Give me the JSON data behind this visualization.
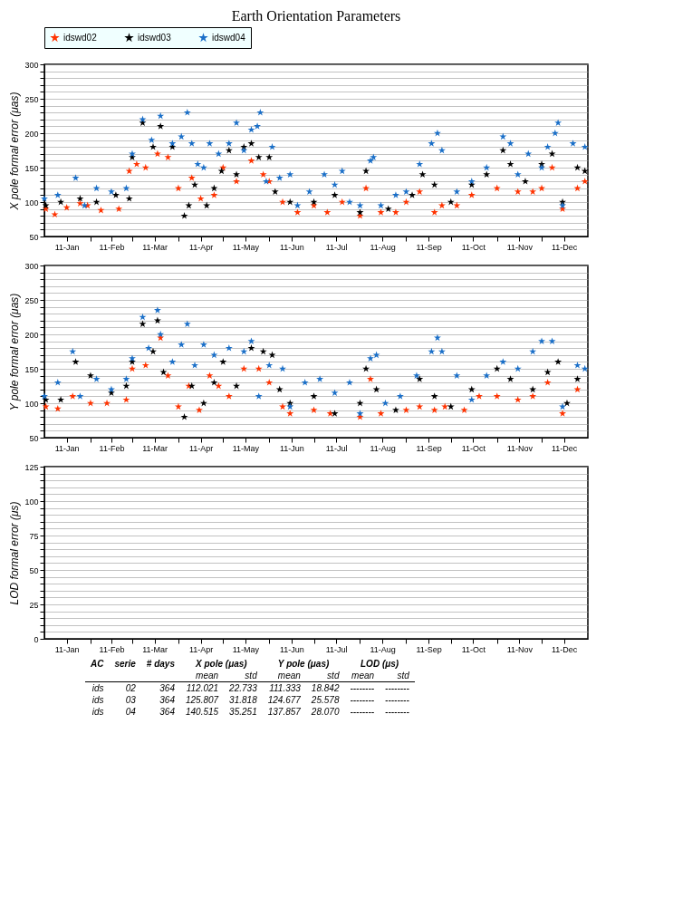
{
  "chart_data": [
    {
      "type": "scatter",
      "title": "Earth Orientation Parameters",
      "ylabel": "X pole formal error (μas)",
      "marker": "star",
      "grid": "y",
      "legend": "top",
      "xlim": [
        "2011-01-01",
        "2012-01-01"
      ],
      "xticks": [
        {
          "value": "2011-01-16",
          "label": "11-Jan"
        },
        {
          "value": "2011-02-01",
          "label": null
        },
        {
          "value": "2011-02-15",
          "label": "11-Feb"
        },
        {
          "value": "2011-03-01",
          "label": null
        },
        {
          "value": "2011-03-16",
          "label": "11-Mar"
        },
        {
          "value": "2011-04-01",
          "label": null
        },
        {
          "value": "2011-04-16",
          "label": "11-Apr"
        },
        {
          "value": "2011-05-01",
          "label": null
        },
        {
          "value": "2011-05-16",
          "label": "11-May"
        },
        {
          "value": "2011-06-01",
          "label": null
        },
        {
          "value": "2011-06-16",
          "label": "11-Jun"
        },
        {
          "value": "2011-07-01",
          "label": null
        },
        {
          "value": "2011-07-16",
          "label": "11-Jul"
        },
        {
          "value": "2011-08-01",
          "label": null
        },
        {
          "value": "2011-08-16",
          "label": "11-Aug"
        },
        {
          "value": "2011-09-01",
          "label": null
        },
        {
          "value": "2011-09-16",
          "label": "11-Sep"
        },
        {
          "value": "2011-10-01",
          "label": null
        },
        {
          "value": "2011-10-16",
          "label": "11-Oct"
        },
        {
          "value": "2011-11-01",
          "label": null
        },
        {
          "value": "2011-11-16",
          "label": "11-Nov"
        },
        {
          "value": "2011-12-01",
          "label": null
        },
        {
          "value": "2011-12-16",
          "label": "11-Dec"
        }
      ],
      "ylim": [
        50,
        300
      ],
      "yticks": [
        50,
        {
          "value": 60,
          "label": null
        },
        {
          "value": 70,
          "label": null
        },
        {
          "value": 80,
          "label": null
        },
        {
          "value": 90,
          "label": null
        },
        100,
        {
          "value": 110,
          "label": null
        },
        {
          "value": 120,
          "label": null
        },
        {
          "value": 130,
          "label": null
        },
        {
          "value": 140,
          "label": null
        },
        150,
        {
          "value": 160,
          "label": null
        },
        {
          "value": 170,
          "label": null
        },
        {
          "value": 180,
          "label": null
        },
        {
          "value": 190,
          "label": null
        },
        200,
        {
          "value": 210,
          "label": null
        },
        {
          "value": 220,
          "label": null
        },
        {
          "value": 230,
          "label": null
        },
        {
          "value": 240,
          "label": null
        },
        250,
        {
          "value": 260,
          "label": null
        },
        {
          "value": 270,
          "label": null
        },
        {
          "value": 280,
          "label": null
        },
        {
          "value": 290,
          "label": null
        },
        300
      ],
      "series": [
        {
          "name": "idswd02",
          "color": "#ff3300",
          "x": [
            "2011-01-02",
            "2011-01-08",
            "2011-01-16",
            "2011-01-25",
            "2011-01-30",
            "2011-02-08",
            "2011-02-20",
            "2011-02-27",
            "2011-03-04",
            "2011-03-10",
            "2011-03-18",
            "2011-03-25",
            "2011-04-01",
            "2011-04-10",
            "2011-04-16",
            "2011-04-25",
            "2011-05-01",
            "2011-05-10",
            "2011-05-20",
            "2011-05-28",
            "2011-06-01",
            "2011-06-10",
            "2011-06-20",
            "2011-07-01",
            "2011-07-10",
            "2011-07-20",
            "2011-08-01",
            "2011-08-05",
            "2011-08-15",
            "2011-08-25",
            "2011-09-01",
            "2011-09-10",
            "2011-09-20",
            "2011-09-25",
            "2011-10-05",
            "2011-10-15",
            "2011-11-01",
            "2011-11-15",
            "2011-11-25",
            "2011-12-01",
            "2011-12-08",
            "2011-12-15",
            "2011-12-25",
            "2011-12-30"
          ],
          "values": [
            90,
            82,
            92,
            98,
            95,
            88,
            90,
            145,
            155,
            150,
            170,
            165,
            120,
            135,
            105,
            110,
            150,
            130,
            160,
            140,
            130,
            100,
            85,
            95,
            85,
            100,
            80,
            120,
            85,
            85,
            100,
            115,
            85,
            95,
            95,
            110,
            120,
            115,
            115,
            120,
            150,
            90,
            120,
            130
          ]
        },
        {
          "name": "idswd03",
          "color": "#000000",
          "x": [
            "2011-01-02",
            "2011-01-12",
            "2011-01-25",
            "2011-02-05",
            "2011-02-18",
            "2011-02-27",
            "2011-03-01",
            "2011-03-08",
            "2011-03-15",
            "2011-03-20",
            "2011-03-28",
            "2011-04-05",
            "2011-04-08",
            "2011-04-12",
            "2011-04-20",
            "2011-04-25",
            "2011-04-30",
            "2011-05-05",
            "2011-05-10",
            "2011-05-15",
            "2011-05-20",
            "2011-05-25",
            "2011-06-01",
            "2011-06-05",
            "2011-06-15",
            "2011-07-01",
            "2011-07-15",
            "2011-08-01",
            "2011-08-05",
            "2011-08-20",
            "2011-09-05",
            "2011-09-12",
            "2011-09-20",
            "2011-10-01",
            "2011-10-15",
            "2011-10-25",
            "2011-11-05",
            "2011-11-10",
            "2011-11-20",
            "2011-12-01",
            "2011-12-08",
            "2011-12-15",
            "2011-12-25",
            "2011-12-30"
          ],
          "values": [
            95,
            100,
            105,
            100,
            110,
            105,
            165,
            215,
            180,
            210,
            180,
            80,
            95,
            125,
            95,
            120,
            145,
            175,
            140,
            180,
            185,
            165,
            165,
            115,
            100,
            100,
            110,
            85,
            145,
            90,
            110,
            140,
            125,
            100,
            125,
            140,
            175,
            155,
            130,
            155,
            170,
            100,
            150,
            145
          ]
        },
        {
          "name": "idswd04",
          "color": "#1a6fc8",
          "x": [
            "2011-01-01",
            "2011-01-10",
            "2011-01-22",
            "2011-01-28",
            "2011-02-05",
            "2011-02-15",
            "2011-02-25",
            "2011-03-01",
            "2011-03-08",
            "2011-03-14",
            "2011-03-20",
            "2011-03-28",
            "2011-04-03",
            "2011-04-07",
            "2011-04-10",
            "2011-04-14",
            "2011-04-18",
            "2011-04-22",
            "2011-04-28",
            "2011-05-05",
            "2011-05-10",
            "2011-05-15",
            "2011-05-20",
            "2011-05-24",
            "2011-05-26",
            "2011-05-30",
            "2011-06-03",
            "2011-06-08",
            "2011-06-15",
            "2011-06-20",
            "2011-06-28",
            "2011-07-08",
            "2011-07-15",
            "2011-07-20",
            "2011-07-25",
            "2011-08-01",
            "2011-08-08",
            "2011-08-10",
            "2011-08-15",
            "2011-08-25",
            "2011-09-01",
            "2011-09-10",
            "2011-09-18",
            "2011-09-22",
            "2011-09-25",
            "2011-10-05",
            "2011-10-15",
            "2011-10-25",
            "2011-11-05",
            "2011-11-10",
            "2011-11-15",
            "2011-11-22",
            "2011-12-01",
            "2011-12-05",
            "2011-12-10",
            "2011-12-12",
            "2011-12-15",
            "2011-12-22",
            "2011-12-30"
          ],
          "values": [
            105,
            110,
            135,
            95,
            120,
            115,
            120,
            170,
            220,
            190,
            225,
            185,
            195,
            230,
            185,
            155,
            150,
            185,
            170,
            185,
            215,
            175,
            205,
            210,
            230,
            130,
            180,
            135,
            140,
            95,
            115,
            140,
            125,
            145,
            100,
            95,
            160,
            165,
            95,
            110,
            115,
            155,
            185,
            200,
            175,
            115,
            130,
            150,
            195,
            185,
            140,
            170,
            150,
            180,
            200,
            215,
            95,
            185,
            180
          ]
        }
      ]
    },
    {
      "type": "scatter",
      "ylabel": "Y pole formal error (μas)",
      "marker": "star",
      "grid": "y",
      "xlim": [
        "2011-01-01",
        "2012-01-01"
      ],
      "xticks": [
        {
          "value": "2011-01-16",
          "label": "11-Jan"
        },
        {
          "value": "2011-02-01",
          "label": null
        },
        {
          "value": "2011-02-15",
          "label": "11-Feb"
        },
        {
          "value": "2011-03-01",
          "label": null
        },
        {
          "value": "2011-03-16",
          "label": "11-Mar"
        },
        {
          "value": "2011-04-01",
          "label": null
        },
        {
          "value": "2011-04-16",
          "label": "11-Apr"
        },
        {
          "value": "2011-05-01",
          "label": null
        },
        {
          "value": "2011-05-16",
          "label": "11-May"
        },
        {
          "value": "2011-06-01",
          "label": null
        },
        {
          "value": "2011-06-16",
          "label": "11-Jun"
        },
        {
          "value": "2011-07-01",
          "label": null
        },
        {
          "value": "2011-07-16",
          "label": "11-Jul"
        },
        {
          "value": "2011-08-01",
          "label": null
        },
        {
          "value": "2011-08-16",
          "label": "11-Aug"
        },
        {
          "value": "2011-09-01",
          "label": null
        },
        {
          "value": "2011-09-16",
          "label": "11-Sep"
        },
        {
          "value": "2011-10-01",
          "label": null
        },
        {
          "value": "2011-10-16",
          "label": "11-Oct"
        },
        {
          "value": "2011-11-01",
          "label": null
        },
        {
          "value": "2011-11-16",
          "label": "11-Nov"
        },
        {
          "value": "2011-12-01",
          "label": null
        },
        {
          "value": "2011-12-16",
          "label": "11-Dec"
        }
      ],
      "ylim": [
        50,
        300
      ],
      "yticks": [
        50,
        {
          "value": 60,
          "label": null
        },
        {
          "value": 70,
          "label": null
        },
        {
          "value": 80,
          "label": null
        },
        {
          "value": 90,
          "label": null
        },
        100,
        {
          "value": 110,
          "label": null
        },
        {
          "value": 120,
          "label": null
        },
        {
          "value": 130,
          "label": null
        },
        {
          "value": 140,
          "label": null
        },
        150,
        {
          "value": 160,
          "label": null
        },
        {
          "value": 170,
          "label": null
        },
        {
          "value": 180,
          "label": null
        },
        {
          "value": 190,
          "label": null
        },
        200,
        {
          "value": 210,
          "label": null
        },
        {
          "value": 220,
          "label": null
        },
        {
          "value": 230,
          "label": null
        },
        {
          "value": 240,
          "label": null
        },
        250,
        {
          "value": 260,
          "label": null
        },
        {
          "value": 270,
          "label": null
        },
        {
          "value": 280,
          "label": null
        },
        {
          "value": 290,
          "label": null
        },
        300
      ],
      "series": [
        {
          "color": "#ff3300",
          "x": [
            "2011-01-02",
            "2011-01-10",
            "2011-01-20",
            "2011-02-01",
            "2011-02-12",
            "2011-02-25",
            "2011-03-01",
            "2011-03-10",
            "2011-03-20",
            "2011-03-25",
            "2011-04-01",
            "2011-04-08",
            "2011-04-15",
            "2011-04-22",
            "2011-04-28",
            "2011-05-05",
            "2011-05-15",
            "2011-05-25",
            "2011-06-01",
            "2011-06-10",
            "2011-06-15",
            "2011-07-01",
            "2011-07-12",
            "2011-08-01",
            "2011-08-08",
            "2011-08-15",
            "2011-09-01",
            "2011-09-10",
            "2011-09-20",
            "2011-09-27",
            "2011-10-10",
            "2011-10-20",
            "2011-11-01",
            "2011-11-15",
            "2011-11-25",
            "2011-12-05",
            "2011-12-15",
            "2011-12-25"
          ],
          "values": [
            95,
            92,
            110,
            100,
            100,
            105,
            150,
            155,
            195,
            140,
            95,
            125,
            90,
            140,
            125,
            110,
            150,
            150,
            130,
            95,
            85,
            90,
            85,
            80,
            135,
            85,
            90,
            95,
            90,
            95,
            90,
            110,
            110,
            105,
            110,
            130,
            85,
            120
          ]
        },
        {
          "color": "#000000",
          "x": [
            "2011-01-02",
            "2011-01-12",
            "2011-01-22",
            "2011-02-01",
            "2011-02-15",
            "2011-02-25",
            "2011-03-01",
            "2011-03-08",
            "2011-03-15",
            "2011-03-18",
            "2011-03-22",
            "2011-04-05",
            "2011-04-10",
            "2011-04-18",
            "2011-04-25",
            "2011-05-01",
            "2011-05-10",
            "2011-05-20",
            "2011-05-28",
            "2011-06-03",
            "2011-06-08",
            "2011-06-15",
            "2011-07-01",
            "2011-07-15",
            "2011-08-01",
            "2011-08-05",
            "2011-08-12",
            "2011-08-25",
            "2011-09-10",
            "2011-09-20",
            "2011-10-01",
            "2011-10-15",
            "2011-11-01",
            "2011-11-10",
            "2011-11-25",
            "2011-12-05",
            "2011-12-12",
            "2011-12-18",
            "2011-12-25"
          ],
          "values": [
            105,
            105,
            160,
            140,
            115,
            125,
            160,
            215,
            175,
            220,
            145,
            80,
            125,
            100,
            130,
            160,
            125,
            180,
            175,
            170,
            120,
            100,
            110,
            85,
            100,
            150,
            120,
            90,
            135,
            110,
            95,
            120,
            150,
            135,
            120,
            145,
            160,
            100,
            135
          ]
        },
        {
          "color": "#1a6fc8",
          "x": [
            "2011-01-01",
            "2011-01-10",
            "2011-01-20",
            "2011-01-25",
            "2011-02-05",
            "2011-02-15",
            "2011-02-25",
            "2011-03-01",
            "2011-03-08",
            "2011-03-12",
            "2011-03-18",
            "2011-03-20",
            "2011-03-28",
            "2011-04-03",
            "2011-04-07",
            "2011-04-12",
            "2011-04-18",
            "2011-04-25",
            "2011-05-05",
            "2011-05-15",
            "2011-05-20",
            "2011-05-25",
            "2011-06-01",
            "2011-06-10",
            "2011-06-15",
            "2011-06-25",
            "2011-07-05",
            "2011-07-15",
            "2011-07-25",
            "2011-08-01",
            "2011-08-08",
            "2011-08-12",
            "2011-08-18",
            "2011-08-28",
            "2011-09-08",
            "2011-09-18",
            "2011-09-22",
            "2011-09-25",
            "2011-10-05",
            "2011-10-15",
            "2011-10-25",
            "2011-11-05",
            "2011-11-15",
            "2011-11-25",
            "2011-12-01",
            "2011-12-08",
            "2011-12-15",
            "2011-12-25",
            "2011-12-30"
          ],
          "values": [
            110,
            130,
            175,
            110,
            135,
            120,
            135,
            165,
            225,
            180,
            235,
            200,
            160,
            185,
            215,
            155,
            185,
            170,
            180,
            175,
            190,
            110,
            155,
            150,
            95,
            130,
            135,
            115,
            130,
            85,
            165,
            170,
            100,
            110,
            140,
            175,
            195,
            175,
            140,
            105,
            140,
            160,
            150,
            175,
            190,
            190,
            95,
            155,
            150
          ]
        }
      ]
    },
    {
      "type": "scatter",
      "ylabel": "LOD formal error (μs)",
      "grid": "y",
      "xlim": [
        "2011-01-01",
        "2012-01-01"
      ],
      "xticks": [
        {
          "value": "2011-01-16",
          "label": "11-Jan"
        },
        {
          "value": "2011-02-01",
          "label": null
        },
        {
          "value": "2011-02-15",
          "label": "11-Feb"
        },
        {
          "value": "2011-03-01",
          "label": null
        },
        {
          "value": "2011-03-16",
          "label": "11-Mar"
        },
        {
          "value": "2011-04-01",
          "label": null
        },
        {
          "value": "2011-04-16",
          "label": "11-Apr"
        },
        {
          "value": "2011-05-01",
          "label": null
        },
        {
          "value": "2011-05-16",
          "label": "11-May"
        },
        {
          "value": "2011-06-01",
          "label": null
        },
        {
          "value": "2011-06-16",
          "label": "11-Jun"
        },
        {
          "value": "2011-07-01",
          "label": null
        },
        {
          "value": "2011-07-16",
          "label": "11-Jul"
        },
        {
          "value": "2011-08-01",
          "label": null
        },
        {
          "value": "2011-08-16",
          "label": "11-Aug"
        },
        {
          "value": "2011-09-01",
          "label": null
        },
        {
          "value": "2011-09-16",
          "label": "11-Sep"
        },
        {
          "value": "2011-10-01",
          "label": null
        },
        {
          "value": "2011-10-16",
          "label": "11-Oct"
        },
        {
          "value": "2011-11-01",
          "label": null
        },
        {
          "value": "2011-11-16",
          "label": "11-Nov"
        },
        {
          "value": "2011-12-01",
          "label": null
        },
        {
          "value": "2011-12-16",
          "label": "11-Dec"
        }
      ],
      "ylim": [
        0,
        125
      ],
      "yticks": [
        0,
        {
          "value": 5,
          "label": null
        },
        {
          "value": 10,
          "label": null
        },
        {
          "value": 15,
          "label": null
        },
        {
          "value": 20,
          "label": null
        },
        25,
        {
          "value": 30,
          "label": null
        },
        {
          "value": 35,
          "label": null
        },
        {
          "value": 40,
          "label": null
        },
        {
          "value": 45,
          "label": null
        },
        50,
        {
          "value": 55,
          "label": null
        },
        {
          "value": 60,
          "label": null
        },
        {
          "value": 65,
          "label": null
        },
        {
          "value": 70,
          "label": null
        },
        75,
        {
          "value": 80,
          "label": null
        },
        {
          "value": 85,
          "label": null
        },
        {
          "value": 90,
          "label": null
        },
        {
          "value": 95,
          "label": null
        },
        100,
        {
          "value": 105,
          "label": null
        },
        {
          "value": 110,
          "label": null
        },
        {
          "value": 115,
          "label": null
        },
        {
          "value": 120,
          "label": null
        },
        125
      ],
      "annotations": [
        "AC",
        "serie",
        "# days",
        "X pole (μas)",
        "Y pole (μas)",
        "LOD (μs)",
        "mean",
        "std",
        "mean",
        "std",
        "mean",
        "std",
        "ids",
        "02",
        "364",
        "112.021",
        "22.733",
        "111.333",
        "18.842",
        "--------",
        "--------",
        "ids",
        "03",
        "364",
        "125.807",
        "31.818",
        "124.677",
        "25.578",
        "--------",
        "--------",
        "ids",
        "04",
        "364",
        "140.515",
        "35.251",
        "137.857",
        "28.070",
        "--------",
        "--------"
      ]
    }
  ]
}
